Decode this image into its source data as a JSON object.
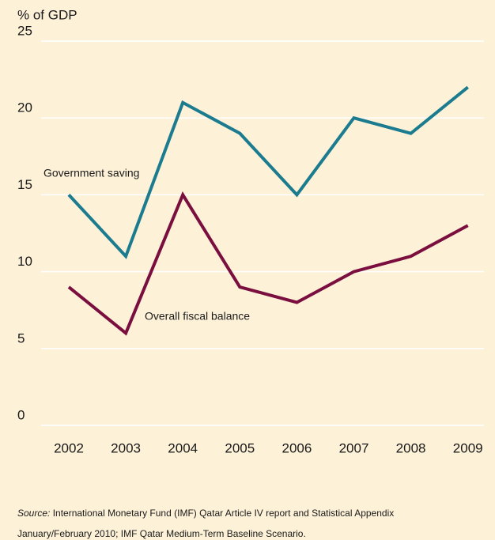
{
  "chart_data": {
    "type": "line",
    "y_axis_label": "% of GDP",
    "categories": [
      "2002",
      "2003",
      "2004",
      "2005",
      "2006",
      "2007",
      "2008",
      "2009"
    ],
    "series": [
      {
        "name": "Government saving",
        "color": "#1b7b8f",
        "values": [
          15,
          11,
          21,
          19,
          15,
          20,
          19,
          22
        ]
      },
      {
        "name": "Overall fiscal balance",
        "color": "#7a0e3e",
        "values": [
          9,
          6,
          15,
          9,
          8,
          10,
          11,
          13
        ]
      }
    ],
    "ylim": [
      0,
      25
    ],
    "yticks": [
      0,
      5,
      10,
      15,
      20,
      25
    ],
    "grid": true,
    "source_label": "Source:",
    "source_lines": [
      " International Monetary Fund (IMF) Qatar Article IV report and Statistical Appendix",
      "January/February 2010; IMF Qatar Medium-Term Baseline Scenario."
    ]
  }
}
